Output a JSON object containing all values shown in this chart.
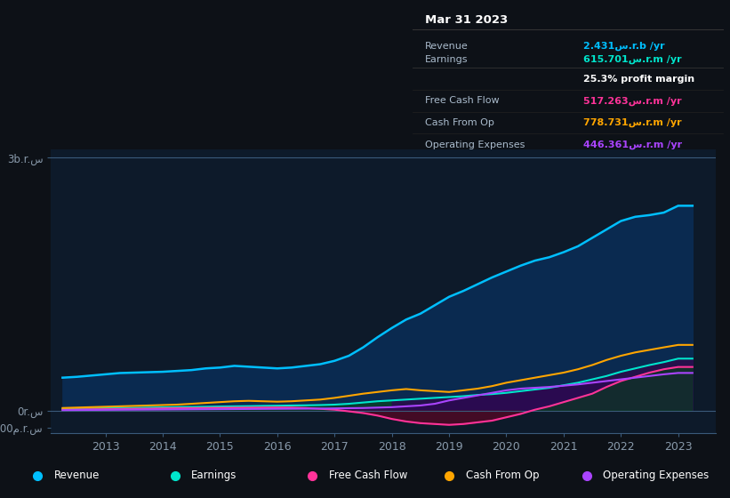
{
  "bg_color": "#0d1117",
  "chart_bg": "#0d1a2a",
  "text_color": "#8899aa",
  "years": [
    2012.25,
    2012.5,
    2012.75,
    2013.0,
    2013.25,
    2013.5,
    2013.75,
    2014.0,
    2014.25,
    2014.5,
    2014.75,
    2015.0,
    2015.25,
    2015.5,
    2015.75,
    2016.0,
    2016.25,
    2016.5,
    2016.75,
    2017.0,
    2017.25,
    2017.5,
    2017.75,
    2018.0,
    2018.25,
    2018.5,
    2018.75,
    2019.0,
    2019.25,
    2019.5,
    2019.75,
    2020.0,
    2020.25,
    2020.5,
    2020.75,
    2021.0,
    2021.25,
    2021.5,
    2021.75,
    2022.0,
    2022.25,
    2022.5,
    2022.75,
    2023.0,
    2023.25
  ],
  "revenue": [
    390,
    400,
    415,
    430,
    445,
    450,
    455,
    460,
    470,
    480,
    500,
    510,
    530,
    520,
    510,
    500,
    510,
    530,
    550,
    590,
    650,
    750,
    870,
    980,
    1080,
    1150,
    1250,
    1350,
    1420,
    1500,
    1580,
    1650,
    1720,
    1780,
    1820,
    1880,
    1950,
    2050,
    2150,
    2250,
    2300,
    2320,
    2350,
    2431,
    2431
  ],
  "earnings": [
    20,
    22,
    25,
    28,
    30,
    32,
    35,
    38,
    40,
    42,
    45,
    48,
    50,
    52,
    55,
    57,
    60,
    62,
    65,
    70,
    80,
    95,
    110,
    120,
    130,
    140,
    150,
    160,
    170,
    185,
    195,
    210,
    230,
    250,
    270,
    300,
    330,
    370,
    410,
    460,
    500,
    540,
    575,
    616,
    616
  ],
  "free_cash_flow": [
    10,
    12,
    14,
    16,
    18,
    20,
    22,
    25,
    27,
    28,
    30,
    32,
    33,
    34,
    35,
    36,
    35,
    30,
    20,
    10,
    -10,
    -30,
    -60,
    -100,
    -130,
    -150,
    -160,
    -170,
    -160,
    -140,
    -120,
    -80,
    -40,
    10,
    50,
    100,
    150,
    200,
    280,
    350,
    400,
    450,
    490,
    517,
    517
  ],
  "cash_from_op": [
    30,
    35,
    40,
    45,
    50,
    55,
    60,
    65,
    70,
    80,
    90,
    100,
    110,
    115,
    110,
    105,
    110,
    120,
    130,
    150,
    175,
    200,
    220,
    240,
    255,
    240,
    230,
    220,
    240,
    260,
    290,
    330,
    360,
    390,
    420,
    450,
    490,
    540,
    600,
    650,
    690,
    720,
    750,
    779,
    779
  ],
  "operating_expenses": [
    5,
    6,
    7,
    8,
    9,
    10,
    11,
    12,
    13,
    14,
    15,
    16,
    17,
    18,
    19,
    20,
    21,
    22,
    23,
    25,
    28,
    30,
    35,
    40,
    50,
    60,
    80,
    120,
    150,
    180,
    210,
    240,
    260,
    270,
    280,
    295,
    310,
    330,
    350,
    370,
    390,
    410,
    430,
    446,
    446
  ],
  "ylim": [
    -270,
    3100
  ],
  "revenue_color": "#00bfff",
  "earnings_color": "#00e5cc",
  "fcf_color": "#ff3399",
  "cashop_color": "#ffa500",
  "opex_color": "#aa44ff",
  "infobox": {
    "date": "Mar 31 2023",
    "revenue_label": "Revenue",
    "revenue_value": "2.431",
    "revenue_unit": "س.r.b /yr",
    "earnings_label": "Earnings",
    "earnings_value": "615.701",
    "earnings_unit": "س.r.m /yr",
    "margin_text": "25.3% profit margin",
    "fcf_label": "Free Cash Flow",
    "fcf_value": "517.263",
    "fcf_unit": "س.r.m /yr",
    "cashop_label": "Cash From Op",
    "cashop_value": "778.731",
    "cashop_unit": "س.r.m /yr",
    "opex_label": "Operating Expenses",
    "opex_value": "446.361",
    "opex_unit": "س.r.m /yr"
  },
  "legend_items": [
    {
      "label": "Revenue",
      "color": "#00bfff"
    },
    {
      "label": "Earnings",
      "color": "#00e5cc"
    },
    {
      "label": "Free Cash Flow",
      "color": "#ff3399"
    },
    {
      "label": "Cash From Op",
      "color": "#ffa500"
    },
    {
      "label": "Operating Expenses",
      "color": "#aa44ff"
    }
  ]
}
